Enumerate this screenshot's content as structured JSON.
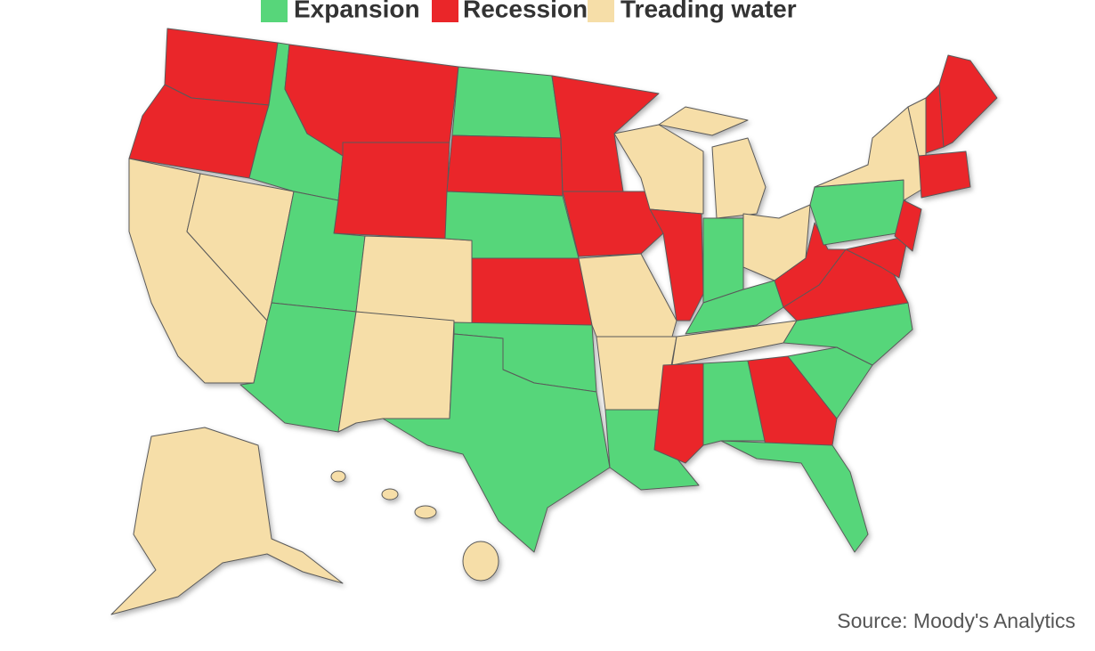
{
  "legend": [
    {
      "label": "Expansion",
      "color": "#57d67a"
    },
    {
      "label": "Recession",
      "color": "#ea2629"
    },
    {
      "label": "Treading water",
      "color": "#f6dea8"
    }
  ],
  "source": "Source: Moody's Analytics"
}
